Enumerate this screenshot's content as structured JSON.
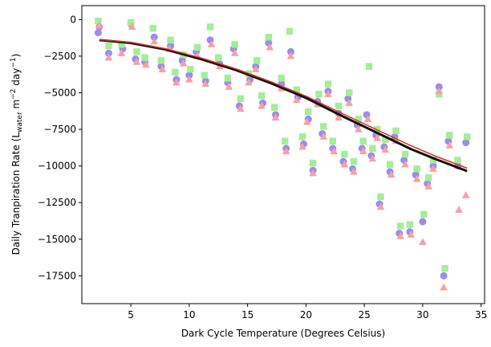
{
  "chart_data": {
    "type": "scatter",
    "title": "",
    "xlabel": "Dark Cycle Temperature (Degrees Celsius)",
    "ylabel_parts": {
      "prefix": "Daily Tranpiration Rate (L",
      "sub": "water",
      "middle1": " m",
      "sup1": "−2",
      "middle2": " day",
      "sup2": "−1",
      "suffix": ")"
    },
    "xlim": [
      0.8,
      35.3
    ],
    "ylim": [
      -19400,
      950
    ],
    "xticks": [
      5,
      10,
      15,
      20,
      25,
      30,
      35
    ],
    "yticks": [
      0,
      -2500,
      -5000,
      -7500,
      -10000,
      -12500,
      -15000,
      -17500
    ],
    "grid": false,
    "legend": "none",
    "colors": {
      "series_purple": "#9b8cef",
      "series_green": "#a3ee96",
      "series_pink": "#f7a1a1",
      "fit_black": "#111111",
      "fit_red": "#dd2e1a"
    },
    "series": [
      {
        "marker": "circle",
        "color": "#9b8cef",
        "points": [
          [
            2.2,
            -900
          ],
          [
            2.3,
            -500
          ],
          [
            3.1,
            -2300
          ],
          [
            4.3,
            -2000
          ],
          [
            5.0,
            -300
          ],
          [
            5.4,
            -2700
          ],
          [
            6.2,
            -2900
          ],
          [
            7.0,
            -1200
          ],
          [
            7.6,
            -3200
          ],
          [
            8.4,
            -1800
          ],
          [
            8.9,
            -4100
          ],
          [
            9.4,
            -2800
          ],
          [
            10.0,
            -3800
          ],
          [
            10.6,
            -2200
          ],
          [
            11.4,
            -4200
          ],
          [
            11.8,
            -1400
          ],
          [
            12.6,
            -3000
          ],
          [
            13.3,
            -4300
          ],
          [
            13.8,
            -2000
          ],
          [
            14.3,
            -5900
          ],
          [
            15.2,
            -4100
          ],
          [
            15.7,
            -3200
          ],
          [
            16.3,
            -5700
          ],
          [
            16.8,
            -1600
          ],
          [
            17.4,
            -6500
          ],
          [
            17.9,
            -4400
          ],
          [
            18.3,
            -8800
          ],
          [
            18.7,
            -2200
          ],
          [
            19.3,
            -5300
          ],
          [
            19.8,
            -8500
          ],
          [
            20.2,
            -6800
          ],
          [
            20.6,
            -10300
          ],
          [
            21.0,
            -5600
          ],
          [
            21.4,
            -7800
          ],
          [
            21.9,
            -4900
          ],
          [
            22.3,
            -8800
          ],
          [
            22.8,
            -6400
          ],
          [
            23.2,
            -9700
          ],
          [
            23.6,
            -5400
          ],
          [
            24.0,
            -10200
          ],
          [
            24.4,
            -7200
          ],
          [
            24.8,
            -8800
          ],
          [
            25.2,
            -6500
          ],
          [
            25.6,
            -9300
          ],
          [
            26.0,
            -7900
          ],
          [
            26.3,
            -12600
          ],
          [
            26.7,
            -8700
          ],
          [
            27.2,
            -10400
          ],
          [
            27.6,
            -8000
          ],
          [
            28.0,
            -14600
          ],
          [
            28.4,
            -9600
          ],
          [
            28.9,
            -14500
          ],
          [
            29.4,
            -10600
          ],
          [
            30.0,
            -13800
          ],
          [
            30.4,
            -11200
          ],
          [
            30.9,
            -10000
          ],
          [
            31.4,
            -4600
          ],
          [
            31.8,
            -17500
          ],
          [
            32.2,
            -8300
          ],
          [
            33.0,
            -10000
          ],
          [
            33.7,
            -8400
          ]
        ]
      },
      {
        "marker": "square",
        "color": "#a3ee96",
        "points": [
          [
            2.2,
            -100
          ],
          [
            3.1,
            -1800
          ],
          [
            4.2,
            -1700
          ],
          [
            5.0,
            -200
          ],
          [
            5.5,
            -2200
          ],
          [
            6.2,
            -2600
          ],
          [
            6.9,
            -600
          ],
          [
            7.6,
            -2800
          ],
          [
            8.4,
            -1400
          ],
          [
            8.8,
            -3600
          ],
          [
            9.5,
            -2400
          ],
          [
            10.1,
            -3400
          ],
          [
            10.7,
            -1900
          ],
          [
            11.3,
            -3800
          ],
          [
            11.8,
            -500
          ],
          [
            12.5,
            -2600
          ],
          [
            13.3,
            -4000
          ],
          [
            13.9,
            -1700
          ],
          [
            14.4,
            -5400
          ],
          [
            15.1,
            -3700
          ],
          [
            15.8,
            -2800
          ],
          [
            16.2,
            -5200
          ],
          [
            16.8,
            -1200
          ],
          [
            17.3,
            -6000
          ],
          [
            17.9,
            -4000
          ],
          [
            18.2,
            -8300
          ],
          [
            18.6,
            -800
          ],
          [
            19.2,
            -4800
          ],
          [
            19.7,
            -8000
          ],
          [
            20.2,
            -6300
          ],
          [
            20.6,
            -9800
          ],
          [
            21.1,
            -5100
          ],
          [
            21.5,
            -7300
          ],
          [
            21.9,
            -4400
          ],
          [
            22.3,
            -8300
          ],
          [
            22.8,
            -5900
          ],
          [
            23.3,
            -9200
          ],
          [
            23.7,
            -5000
          ],
          [
            24.1,
            -9700
          ],
          [
            24.5,
            -6800
          ],
          [
            24.9,
            -8300
          ],
          [
            25.4,
            -3200
          ],
          [
            25.7,
            -8800
          ],
          [
            26.1,
            -7500
          ],
          [
            26.4,
            -12100
          ],
          [
            26.8,
            -8200
          ],
          [
            27.2,
            -9900
          ],
          [
            27.7,
            -7600
          ],
          [
            28.1,
            -14100
          ],
          [
            28.5,
            -9200
          ],
          [
            28.9,
            -14000
          ],
          [
            29.5,
            -10200
          ],
          [
            30.1,
            -13300
          ],
          [
            30.5,
            -10800
          ],
          [
            30.9,
            -9600
          ],
          [
            31.4,
            -5100
          ],
          [
            31.9,
            -17000
          ],
          [
            32.3,
            -7900
          ],
          [
            33.0,
            -9600
          ],
          [
            33.8,
            -8000
          ]
        ]
      },
      {
        "marker": "triangle",
        "color": "#f7a1a1",
        "points": [
          [
            2.3,
            -400
          ],
          [
            3.1,
            -2600
          ],
          [
            4.2,
            -2300
          ],
          [
            5.1,
            -500
          ],
          [
            5.5,
            -2900
          ],
          [
            6.3,
            -3100
          ],
          [
            7.0,
            -1500
          ],
          [
            7.7,
            -3400
          ],
          [
            8.3,
            -2000
          ],
          [
            8.9,
            -4300
          ],
          [
            9.5,
            -3000
          ],
          [
            10.0,
            -4100
          ],
          [
            10.7,
            -2500
          ],
          [
            11.4,
            -4400
          ],
          [
            11.9,
            -1700
          ],
          [
            12.6,
            -3200
          ],
          [
            13.4,
            -4600
          ],
          [
            13.9,
            -2300
          ],
          [
            14.4,
            -6100
          ],
          [
            15.1,
            -4300
          ],
          [
            15.7,
            -3400
          ],
          [
            16.2,
            -5900
          ],
          [
            16.9,
            -1900
          ],
          [
            17.4,
            -6700
          ],
          [
            17.9,
            -4700
          ],
          [
            18.3,
            -9000
          ],
          [
            18.7,
            -2500
          ],
          [
            19.2,
            -5500
          ],
          [
            19.7,
            -8700
          ],
          [
            20.1,
            -7000
          ],
          [
            20.6,
            -10500
          ],
          [
            21.0,
            -5800
          ],
          [
            21.5,
            -8000
          ],
          [
            21.9,
            -5100
          ],
          [
            22.4,
            -9000
          ],
          [
            22.8,
            -6700
          ],
          [
            23.3,
            -9900
          ],
          [
            23.7,
            -5700
          ],
          [
            24.1,
            -10400
          ],
          [
            24.5,
            -7500
          ],
          [
            24.9,
            -9000
          ],
          [
            25.3,
            -6800
          ],
          [
            25.7,
            -9500
          ],
          [
            26.1,
            -8100
          ],
          [
            26.4,
            -12800
          ],
          [
            26.8,
            -8900
          ],
          [
            27.3,
            -10600
          ],
          [
            27.7,
            -8300
          ],
          [
            28.1,
            -14800
          ],
          [
            28.5,
            -9900
          ],
          [
            29.0,
            -14700
          ],
          [
            29.5,
            -10900
          ],
          [
            30.0,
            -15200
          ],
          [
            30.5,
            -11400
          ],
          [
            30.9,
            -10200
          ],
          [
            31.4,
            -4900
          ],
          [
            31.8,
            -18300
          ],
          [
            32.3,
            -8600
          ],
          [
            33.1,
            -13000
          ],
          [
            33.7,
            -12000
          ]
        ]
      }
    ],
    "fit_curves": [
      {
        "color": "#111111",
        "x": [
          2.3,
          5,
          8,
          11,
          14,
          17,
          20,
          23,
          26,
          29,
          31,
          33.8
        ],
        "y": [
          -1400,
          -1600,
          -2050,
          -2700,
          -3450,
          -4350,
          -5350,
          -6550,
          -7700,
          -8850,
          -9500,
          -10350
        ]
      },
      {
        "color": "#dd2e1a",
        "x": [
          2.3,
          5,
          8,
          11,
          14,
          17,
          20,
          23,
          26,
          29,
          31,
          33.8
        ],
        "y": [
          -1380,
          -1560,
          -2000,
          -2620,
          -3370,
          -4250,
          -5230,
          -6380,
          -7500,
          -8620,
          -9300,
          -10150
        ]
      }
    ]
  }
}
